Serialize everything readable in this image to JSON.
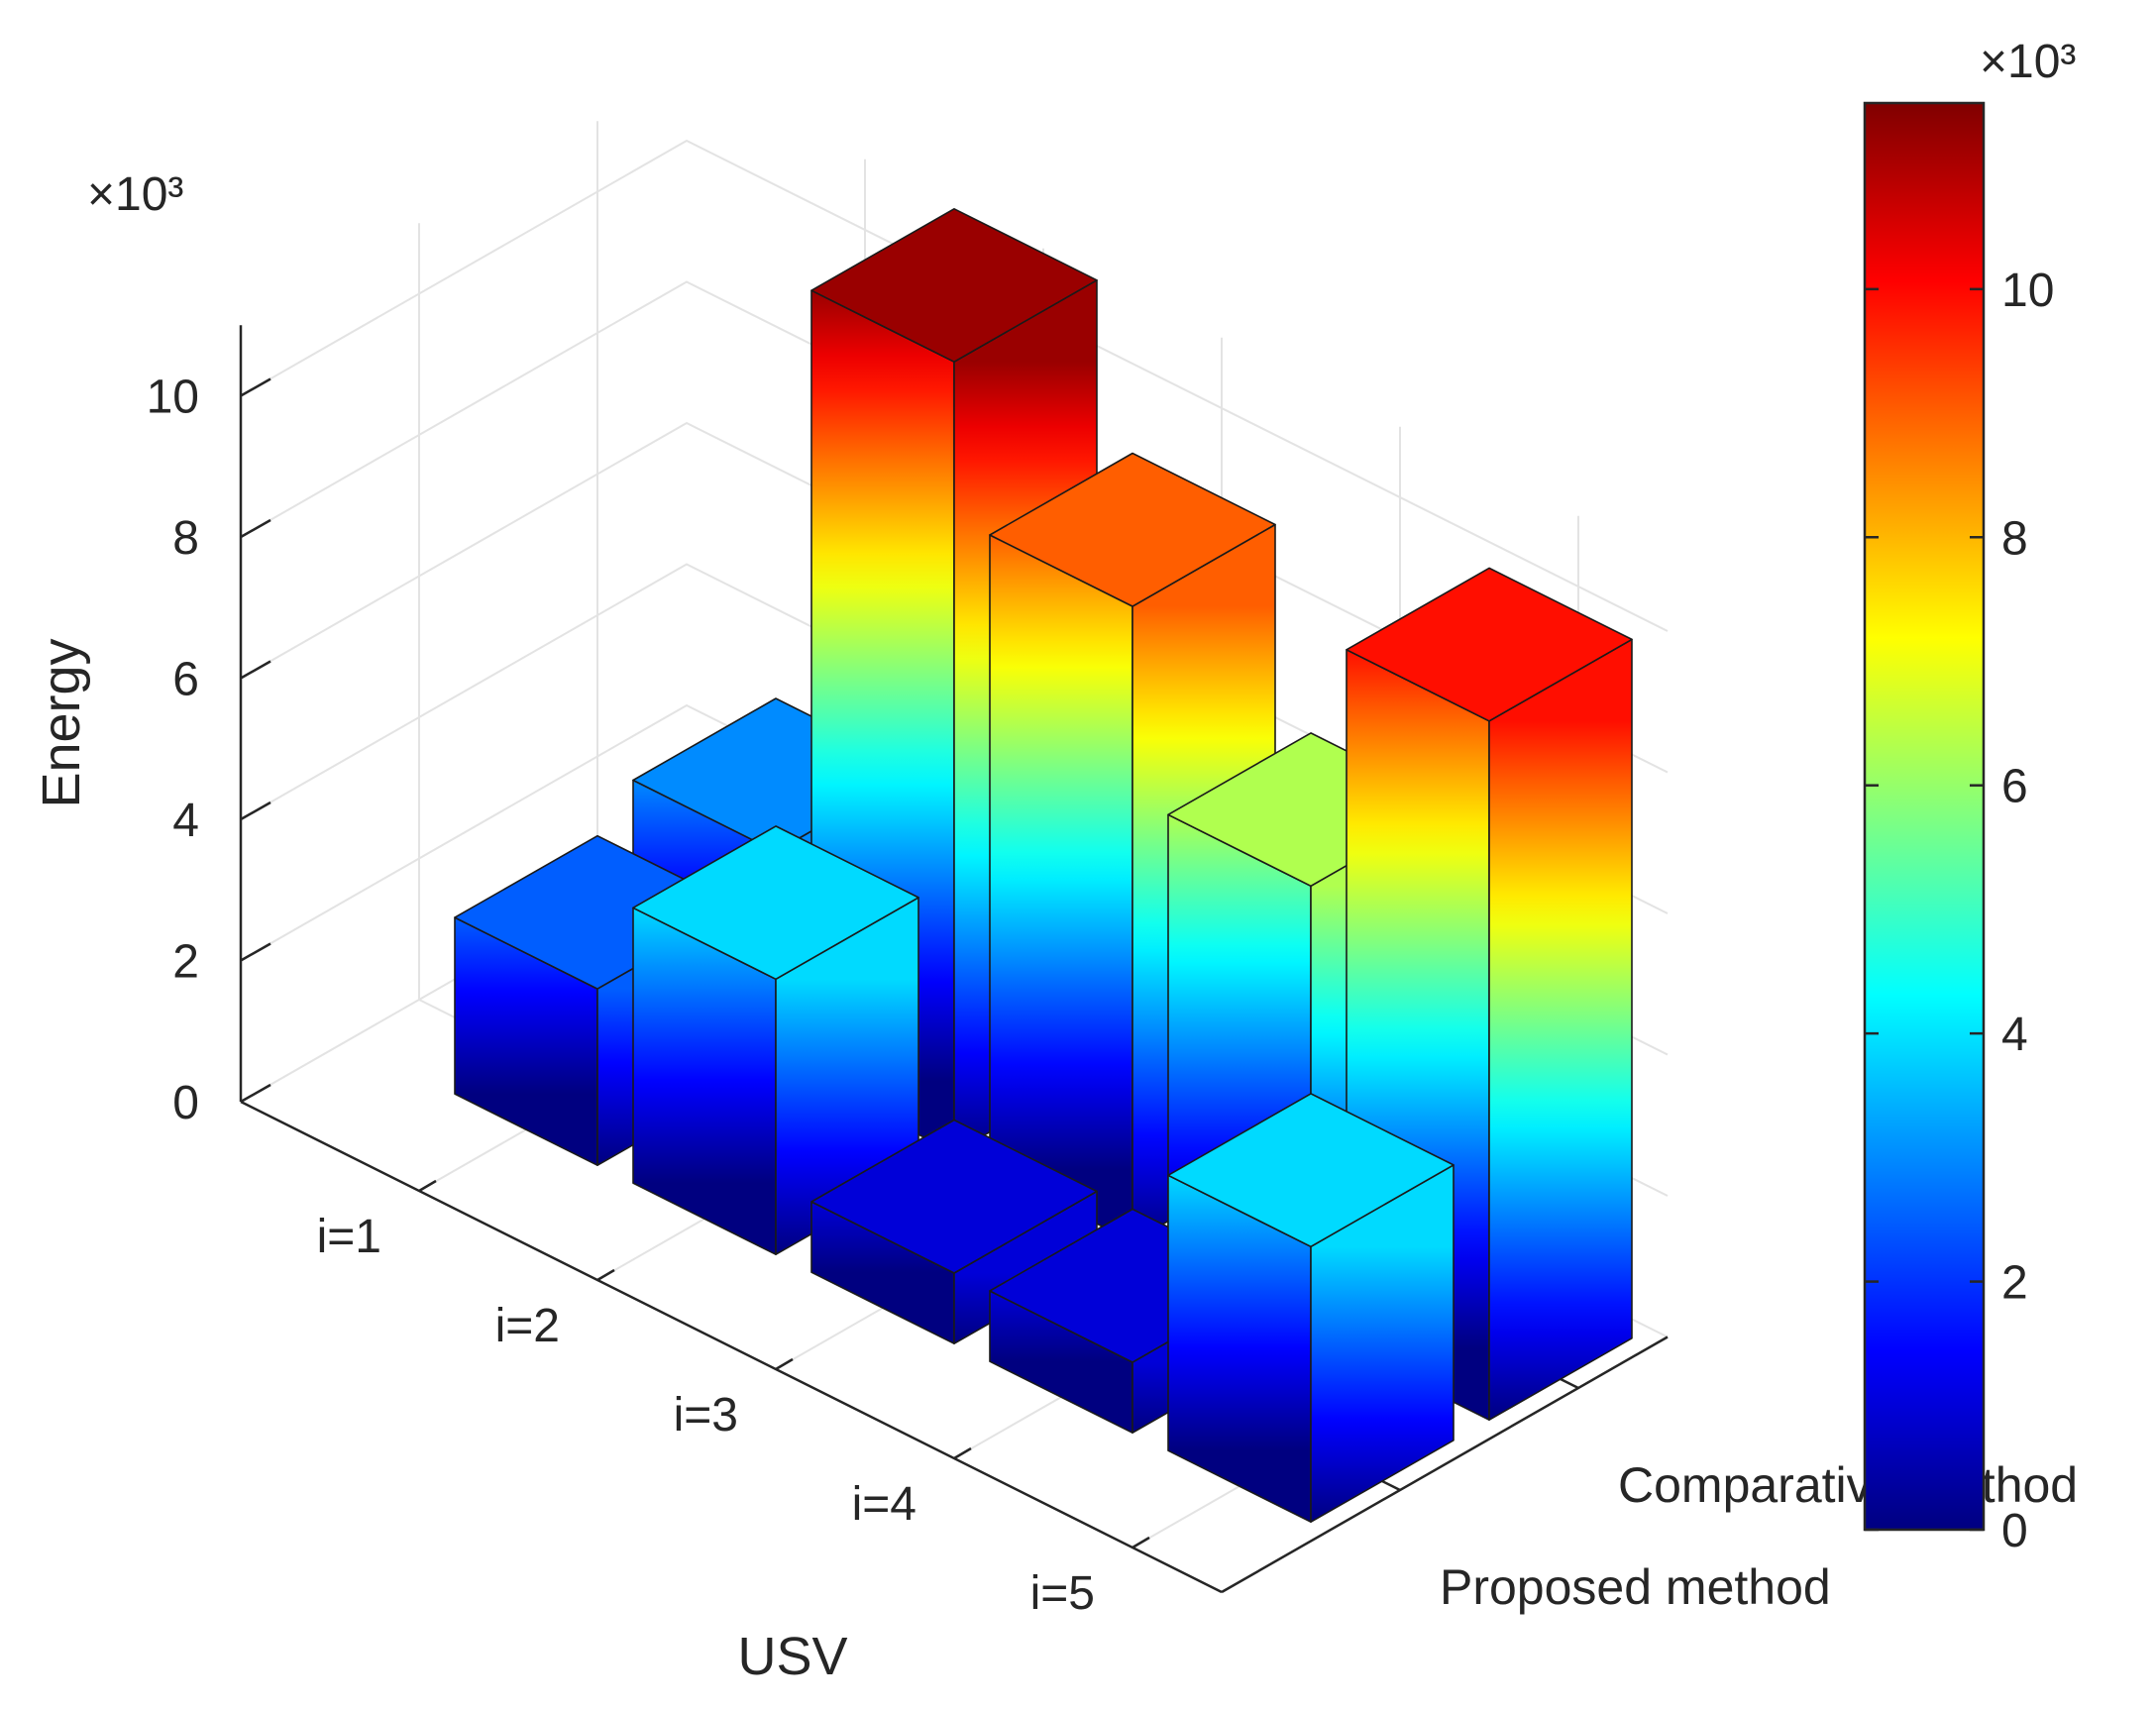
{
  "chart_data": {
    "type": "bar3d",
    "title": "",
    "xlabel": "USV",
    "ylabel": "",
    "zlabel": "Energy",
    "z_exponent_label": "×10³",
    "categories": [
      "i=1",
      "i=2",
      "i=3",
      "i=4",
      "i=5"
    ],
    "series": [
      {
        "name": "Proposed method",
        "values": [
          2500,
          3900,
          1000,
          1000,
          3900
        ]
      },
      {
        "name": "Comparative method",
        "values": [
          3000,
          11200,
          9000,
          6300,
          9900
        ]
      }
    ],
    "zlim": [
      0,
      11000
    ],
    "zticks": [
      0,
      2000,
      4000,
      6000,
      8000,
      10000
    ],
    "ztick_labels": [
      "0",
      "2",
      "4",
      "6",
      "8",
      "10"
    ],
    "colormap": "jet",
    "grid": true,
    "colorbar": {
      "range": [
        0,
        11500
      ],
      "ticks": [
        0,
        2000,
        4000,
        6000,
        8000,
        10000
      ],
      "tick_labels": [
        "0",
        "2",
        "4",
        "6",
        "8",
        "10"
      ],
      "exponent_label": "×10³"
    }
  }
}
